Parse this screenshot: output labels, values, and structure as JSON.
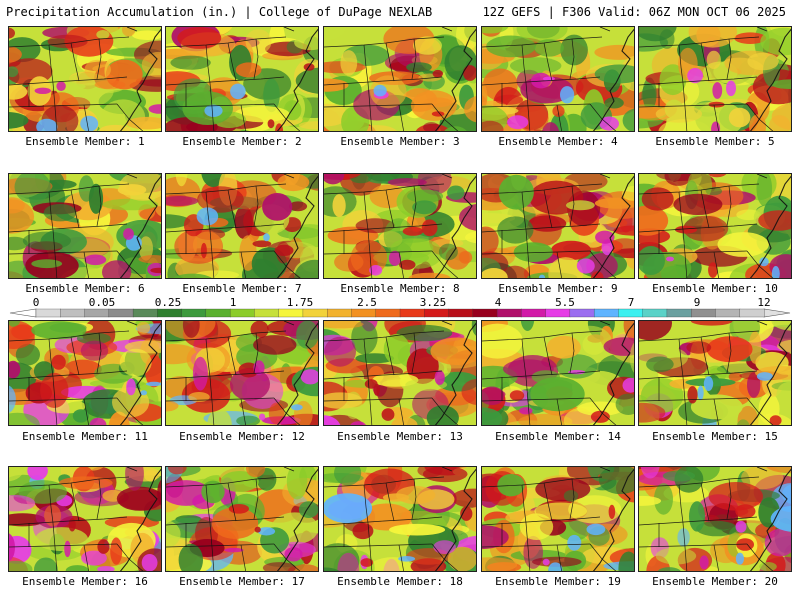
{
  "header": {
    "left": "Precipitation Accumulation (in.) | College of DuPage NEXLAB",
    "right": "12Z GEFS | F306 Valid: 06Z MON OCT 06 2025"
  },
  "colors": {
    "scale": [
      "#d9d9d9",
      "#bfbfbf",
      "#a6a6a6",
      "#8c8c8c",
      "#5a8a5a",
      "#2f7f2f",
      "#3d9a3d",
      "#5bb02f",
      "#8ccc2a",
      "#c6e03a",
      "#f5f53c",
      "#f2d23a",
      "#f2b22e",
      "#f29122",
      "#ef6a1c",
      "#e83a1a",
      "#d41a1a",
      "#b80f1a",
      "#98001e",
      "#b0106a",
      "#d21aa8",
      "#e63ce6",
      "#9b6ef0",
      "#5fb4ff",
      "#3cf0f0",
      "#5ad2c8",
      "#6aa0a0",
      "#909090",
      "#b4b4b4",
      "#cfcfcf"
    ]
  },
  "legend": {
    "ticks": [
      "0",
      "0.05",
      "0.25",
      "1",
      "1.75",
      "2.5",
      "3.25",
      "4",
      "5.5",
      "7",
      "9",
      "12"
    ]
  },
  "panels": [
    {
      "label": "Ensemble Member: 1"
    },
    {
      "label": "Ensemble Member: 2"
    },
    {
      "label": "Ensemble Member: 3"
    },
    {
      "label": "Ensemble Member: 4"
    },
    {
      "label": "Ensemble Member: 5"
    },
    {
      "label": "Ensemble Member: 6"
    },
    {
      "label": "Ensemble Member: 7"
    },
    {
      "label": "Ensemble Member: 8"
    },
    {
      "label": "Ensemble Member: 9"
    },
    {
      "label": "Ensemble Member: 10"
    },
    {
      "label": "Ensemble Member: 11"
    },
    {
      "label": "Ensemble Member: 12"
    },
    {
      "label": "Ensemble Member: 13"
    },
    {
      "label": "Ensemble Member: 14"
    },
    {
      "label": "Ensemble Member: 15"
    },
    {
      "label": "Ensemble Member: 16"
    },
    {
      "label": "Ensemble Member: 17"
    },
    {
      "label": "Ensemble Member: 18"
    },
    {
      "label": "Ensemble Member: 19"
    },
    {
      "label": "Ensemble Member: 20"
    }
  ]
}
